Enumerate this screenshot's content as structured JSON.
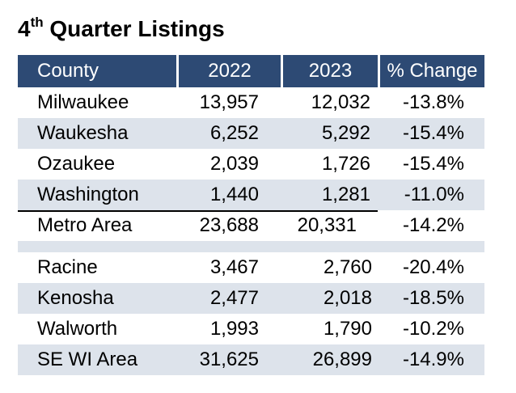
{
  "title": {
    "main": "4",
    "sup": "th",
    "rest": " Quarter Listings"
  },
  "headers": [
    "County",
    "2022",
    "2023",
    "% Change"
  ],
  "metro_rows": [
    {
      "county": "Milwaukee",
      "y2022": "13,957",
      "y2023": "12,032",
      "change": "-13.8%"
    },
    {
      "county": "Waukesha",
      "y2022": "6,252",
      "y2023": "5,292",
      "change": "-15.4%"
    },
    {
      "county": "Ozaukee",
      "y2022": "2,039",
      "y2023": "1,726",
      "change": "-15.4%"
    },
    {
      "county": "Washington",
      "y2022": "1,440",
      "y2023": "1,281",
      "change": "-11.0%"
    }
  ],
  "metro_total": {
    "county": "Metro Area",
    "y2022": "23,688",
    "y2023": "20,331",
    "change": "-14.2%"
  },
  "other_rows": [
    {
      "county": "Racine",
      "y2022": "3,467",
      "y2023": "2,760",
      "change": "-20.4%"
    },
    {
      "county": "Kenosha",
      "y2022": "2,477",
      "y2023": "2,018",
      "change": "-18.5%"
    },
    {
      "county": "Walworth",
      "y2022": "1,993",
      "y2023": "1,790",
      "change": "-10.2%"
    }
  ],
  "se_total": {
    "county": "SE WI Area",
    "y2022": "31,625",
    "y2023": "26,899",
    "change": "-14.9%"
  },
  "colors": {
    "header_bg": "#2d4a74",
    "header_text": "#ffffff",
    "stripe": "#dde3eb"
  }
}
